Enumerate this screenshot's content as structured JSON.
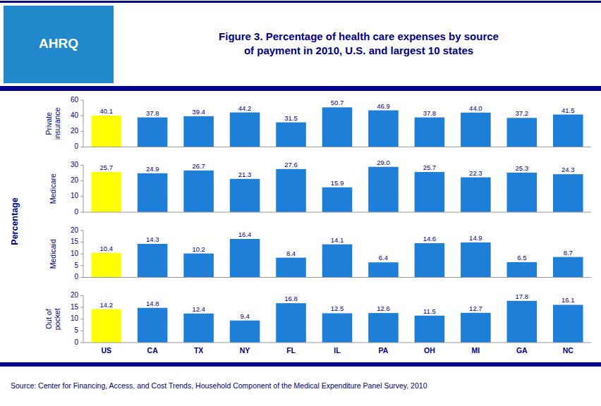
{
  "title": "Figure 3. Percentage of health care expenses by source\nof payment in 2010, U.S. and largest 10 states",
  "ylabel": "Percentage",
  "annotations": [
    "AHRQ",
    "Source: Center for Financing, Access, and Cost Trends, Household Component of the Medical Expenditure Panel Survey,  2010"
  ],
  "chart_data": [
    {
      "type": "bar",
      "ylabel": "Private\ninsurance",
      "categories": [
        "US",
        "CA",
        "TX",
        "NY",
        "FL",
        "IL",
        "PA",
        "OH",
        "MI",
        "GA",
        "NC"
      ],
      "values": [
        40.1,
        37.8,
        39.4,
        44.2,
        31.5,
        50.7,
        46.9,
        37.8,
        44.0,
        37.2,
        41.5
      ],
      "value_labels": [
        "40.1",
        "37.8",
        "39.4",
        "44.2",
        "31.5",
        "50.7",
        "46.9",
        "37.8",
        "44.0",
        "37.2",
        "41.5"
      ],
      "colors": [
        "#FFFF00",
        "#1E7FD8",
        "#1E7FD8",
        "#1E7FD8",
        "#1E7FD8",
        "#1E7FD8",
        "#1E7FD8",
        "#1E7FD8",
        "#1E7FD8",
        "#1E7FD8",
        "#1E7FD8"
      ],
      "ylim": [
        0,
        60
      ],
      "yticks": [
        0,
        20,
        40,
        60
      ],
      "grid": false,
      "data_labels": true,
      "tick_labels": "y"
    },
    {
      "type": "bar",
      "ylabel": "Medicare",
      "categories": [
        "US",
        "CA",
        "TX",
        "NY",
        "FL",
        "IL",
        "PA",
        "OH",
        "MI",
        "GA",
        "NC"
      ],
      "values": [
        25.7,
        24.9,
        26.7,
        21.3,
        27.6,
        15.9,
        29.0,
        25.7,
        22.3,
        25.3,
        24.3
      ],
      "value_labels": [
        "25.7",
        "24.9",
        "26.7",
        "21.3",
        "27.6",
        "15.9",
        "29.0",
        "25.7",
        "22.3",
        "25.3",
        "24.3"
      ],
      "colors": [
        "#FFFF00",
        "#1E7FD8",
        "#1E7FD8",
        "#1E7FD8",
        "#1E7FD8",
        "#1E7FD8",
        "#1E7FD8",
        "#1E7FD8",
        "#1E7FD8",
        "#1E7FD8",
        "#1E7FD8"
      ],
      "ylim": [
        0,
        30
      ],
      "yticks": [
        0,
        10,
        20,
        30
      ],
      "grid": false,
      "data_labels": true,
      "tick_labels": "y"
    },
    {
      "type": "bar",
      "ylabel": "Medicaid",
      "categories": [
        "US",
        "CA",
        "TX",
        "NY",
        "FL",
        "IL",
        "PA",
        "OH",
        "MI",
        "GA",
        "NC"
      ],
      "values": [
        10.4,
        14.3,
        10.2,
        16.4,
        8.4,
        14.1,
        6.4,
        14.6,
        14.9,
        6.5,
        8.7
      ],
      "colors": [
        "#FFFF00",
        "#1E7FD8",
        "#1E7FD8",
        "#1E7FD8",
        "#1E7FD8",
        "#1E7FD8",
        "#1E7FD8",
        "#1E7FD8",
        "#1E7FD8",
        "#1E7FD8",
        "#1E7FD8"
      ],
      "ylim": [
        0,
        20
      ],
      "yticks": [
        0,
        5,
        10,
        15,
        20
      ],
      "grid": false,
      "data_labels": true,
      "tick_labels": "y"
    },
    {
      "type": "bar",
      "ylabel": "Out of\npocket",
      "categories": [
        "US",
        "CA",
        "TX",
        "NY",
        "FL",
        "IL",
        "PA",
        "OH",
        "MI",
        "GA",
        "NC"
      ],
      "values": [
        14.2,
        14.8,
        12.4,
        9.4,
        16.8,
        12.5,
        12.6,
        11.5,
        12.7,
        17.8,
        16.1
      ],
      "colors": [
        "#FFFF00",
        "#1E7FD8",
        "#1E7FD8",
        "#1E7FD8",
        "#1E7FD8",
        "#1E7FD8",
        "#1E7FD8",
        "#1E7FD8",
        "#1E7FD8",
        "#1E7FD8",
        "#1E7FD8"
      ],
      "ylim": [
        0,
        20
      ],
      "yticks": [
        0,
        5,
        10,
        15,
        20
      ],
      "grid": false,
      "data_labels": true,
      "tick_labels": true
    }
  ]
}
